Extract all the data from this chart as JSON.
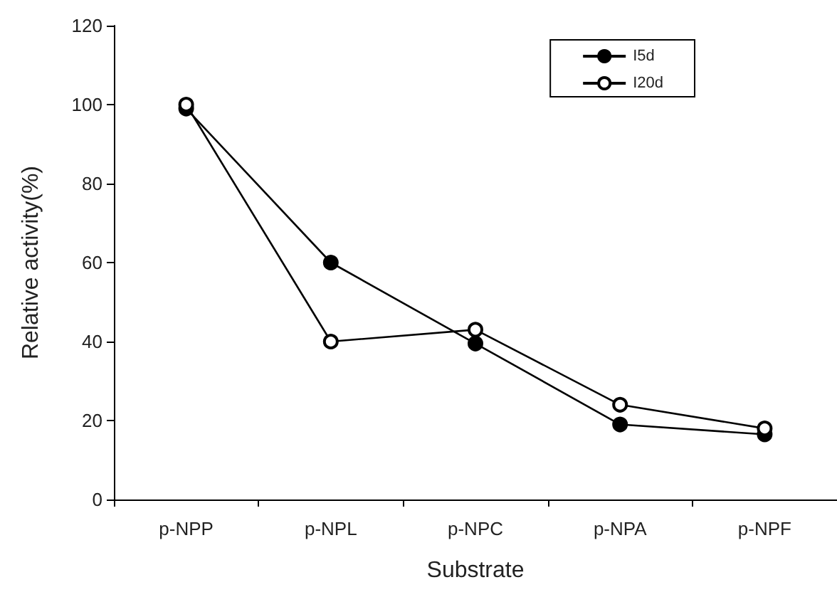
{
  "chart_data": {
    "type": "line",
    "xlabel": "Substrate",
    "ylabel": "Relative activity(%)",
    "categories": [
      "p-NPP",
      "p-NPL",
      "p-NPC",
      "p-NPA",
      "p-NPF"
    ],
    "series": [
      {
        "name": "I5d",
        "color": "#000000",
        "values": [
          99,
          60,
          39.5,
          19,
          16.5
        ]
      },
      {
        "name": "I20d",
        "color": "#000000",
        "values": [
          100,
          40,
          43,
          24,
          18
        ]
      }
    ],
    "ylim": [
      0,
      120
    ],
    "yticks": [
      0,
      20,
      40,
      60,
      80,
      100,
      120
    ],
    "grid": false,
    "legend": "top right",
    "marker": "circle",
    "line_style": "solid"
  }
}
